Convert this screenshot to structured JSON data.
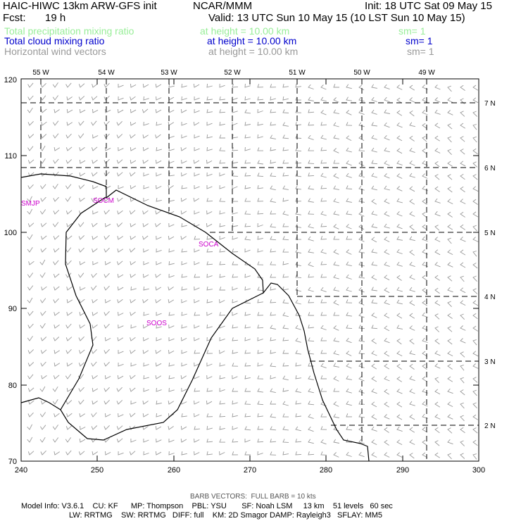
{
  "header": {
    "title": "HAIC-HIWC 13km ARW-GFS init",
    "org": "NCAR/MMM",
    "init": "Init: 18 UTC Sat 09 May 15",
    "fcst_label": "Fcst:",
    "fcst_value": "19 h",
    "valid": "Valid: 13 UTC Sun 10 May 15 (10 LST Sun 10 May 15)"
  },
  "fields": [
    {
      "name": "Total precipitation mixing ratio",
      "height": "at height = 10.00 km",
      "sm": "sm= 1",
      "color": "#99ee99"
    },
    {
      "name": "Total cloud mixing ratio",
      "height": "at height = 10.00 km",
      "sm": "sm= 1",
      "color": "#0000cc"
    },
    {
      "name": "Horizontal wind vectors",
      "height": "at height = 10.00 km",
      "sm": "sm= 1",
      "color": "#999999"
    }
  ],
  "map": {
    "x_ticks": [
      "240",
      "250",
      "260",
      "270",
      "280",
      "290",
      "300"
    ],
    "y_ticks": [
      "70",
      "80",
      "90",
      "100",
      "110",
      "120"
    ],
    "lon_labels": [
      "55 W",
      "54 W",
      "53 W",
      "52 W",
      "51 W",
      "50 W",
      "49 W"
    ],
    "lat_labels": [
      "7 N",
      "6 N",
      "5 N",
      "4 N",
      "3 N",
      "2 N"
    ],
    "station_labels": [
      "SMJP",
      "SOCM",
      "SOCA",
      "SOOS"
    ],
    "station_color": "#cc00cc",
    "barb_color": "#999999"
  },
  "footer": {
    "barb_note": "BARB VECTORS:  FULL BARB = 10 kts",
    "model_line1": "Model Info: V3.6.1    CU: KF      MP: Thompson    PBL: YSU       SF: Noah LSM     13 km    51 levels   60 sec",
    "model_line2": "LW: RRTMG    SW: RRTMG   DIFF: full    KM: 2D Smagor DAMP: Rayleigh3   SFLAY: MM5"
  }
}
